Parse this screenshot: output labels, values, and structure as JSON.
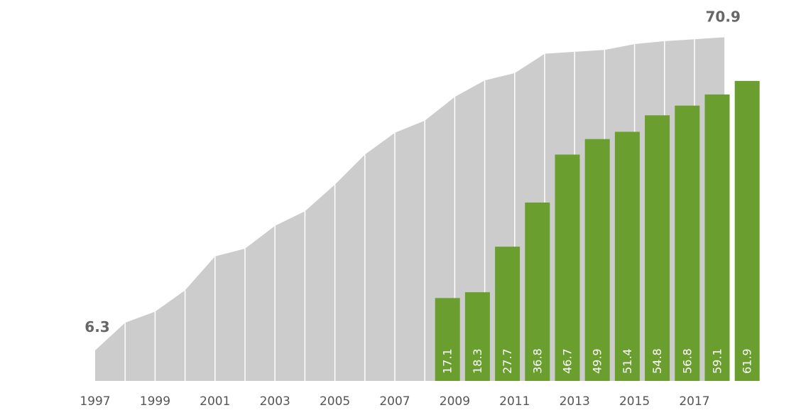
{
  "chart_data": {
    "type": "area",
    "x": [
      1997,
      1998,
      1999,
      2000,
      2001,
      2002,
      2003,
      2004,
      2005,
      2006,
      2007,
      2008,
      2009,
      2010,
      2011,
      2012,
      2013,
      2014,
      2015,
      2016,
      2017,
      2018
    ],
    "series": [
      {
        "kind": "area",
        "values": [
          6.3,
          12.0,
          14.3,
          18.7,
          25.7,
          27.3,
          32.0,
          35.0,
          40.5,
          46.7,
          51.2,
          53.7,
          58.6,
          62.0,
          63.5,
          67.5,
          67.9,
          68.3,
          69.5,
          70.1,
          70.5,
          70.9
        ],
        "color": "#cccccc"
      },
      {
        "kind": "bar",
        "x": [
          2008,
          2009,
          2010,
          2011,
          2012,
          2013,
          2014,
          2015,
          2016,
          2017,
          2018
        ],
        "values": [
          17.1,
          18.3,
          27.7,
          36.8,
          46.7,
          49.9,
          51.4,
          54.8,
          56.8,
          59.1,
          61.9
        ],
        "labels": [
          "17.1",
          "18.3",
          "27.7",
          "36.8",
          "46.7",
          "49.9",
          "51.4",
          "54.8",
          "56.8",
          "59.1",
          "61.9"
        ],
        "color": "#6a9e2f"
      }
    ],
    "x_tick_labels": [
      "1997",
      "1999",
      "2001",
      "2003",
      "2005",
      "2007",
      "2009",
      "2011",
      "2013",
      "2015",
      "2017"
    ],
    "start_label": "6.3",
    "end_label": "70.9",
    "title": "",
    "xlabel": "",
    "ylabel": "",
    "ylim": [
      0,
      72
    ],
    "grid": false,
    "legend": "none"
  }
}
